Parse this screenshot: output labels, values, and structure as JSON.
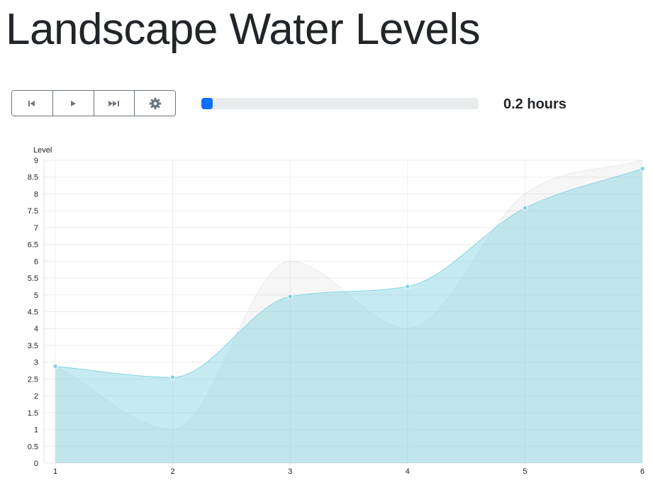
{
  "page": {
    "title": "Landscape Water Levels"
  },
  "controls": {
    "buttons": [
      {
        "name": "skip-back-button",
        "icon": "skip-back-icon"
      },
      {
        "name": "play-button",
        "icon": "play-icon"
      },
      {
        "name": "fast-forward-button",
        "icon": "fast-forward-icon"
      },
      {
        "name": "settings-button",
        "icon": "gear-icon"
      }
    ],
    "progress_fraction": 0.04,
    "elapsed_label": "0.2 hours"
  },
  "chart_data": {
    "type": "area",
    "ylabel": "Level",
    "xlabel": "",
    "x": [
      1,
      2,
      3,
      4,
      5,
      6
    ],
    "ylim": [
      0,
      9
    ],
    "yticks": [
      "0",
      "0.5",
      "1",
      "1.5",
      "2",
      "2.5",
      "3",
      "3.5",
      "4",
      "4.5",
      "5",
      "5.5",
      "6",
      "6.5",
      "7",
      "7.5",
      "8",
      "8.5",
      "9"
    ],
    "xticks": [
      "1",
      "2",
      "3",
      "4",
      "5",
      "6"
    ],
    "grid": true,
    "series": [
      {
        "values": [
          2.9,
          1.0,
          6.0,
          4.0,
          8.0,
          9.0
        ],
        "color": "#dcdcdc"
      },
      {
        "values": [
          2.88,
          2.55,
          4.95,
          5.25,
          7.58,
          8.75
        ],
        "color": "#7fd3df"
      }
    ]
  }
}
